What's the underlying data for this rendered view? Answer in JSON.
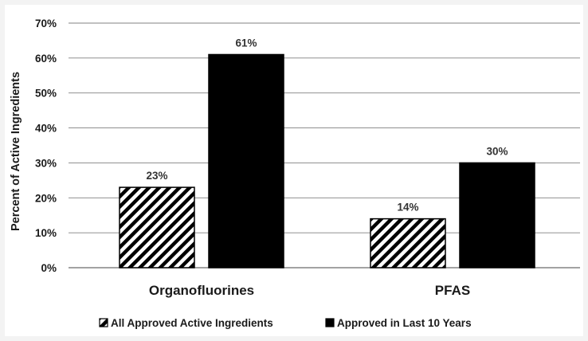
{
  "chart_data": {
    "type": "bar",
    "title": "",
    "xlabel": "",
    "ylabel": "Percent of Active Ingredients",
    "categories": [
      "Organofluorines",
      "PFAS"
    ],
    "series": [
      {
        "name": "All Approved Active Ingredients",
        "values": [
          23,
          14
        ],
        "labels": [
          "23%",
          "14%"
        ],
        "pattern": "diagonal-hatch"
      },
      {
        "name": "Approved in Last 10 Years",
        "values": [
          61,
          30
        ],
        "labels": [
          "61%",
          "30%"
        ],
        "pattern": "solid"
      }
    ],
    "ylim": [
      0,
      70
    ],
    "yticks": [
      "0%",
      "10%",
      "20%",
      "30%",
      "40%",
      "50%",
      "60%",
      "70%"
    ],
    "grid": true,
    "legend_position": "bottom",
    "colors": {
      "bar": "#000000",
      "hatch_bg": "#ffffff",
      "grid": "#808080",
      "text": "#1a1a1a"
    }
  }
}
